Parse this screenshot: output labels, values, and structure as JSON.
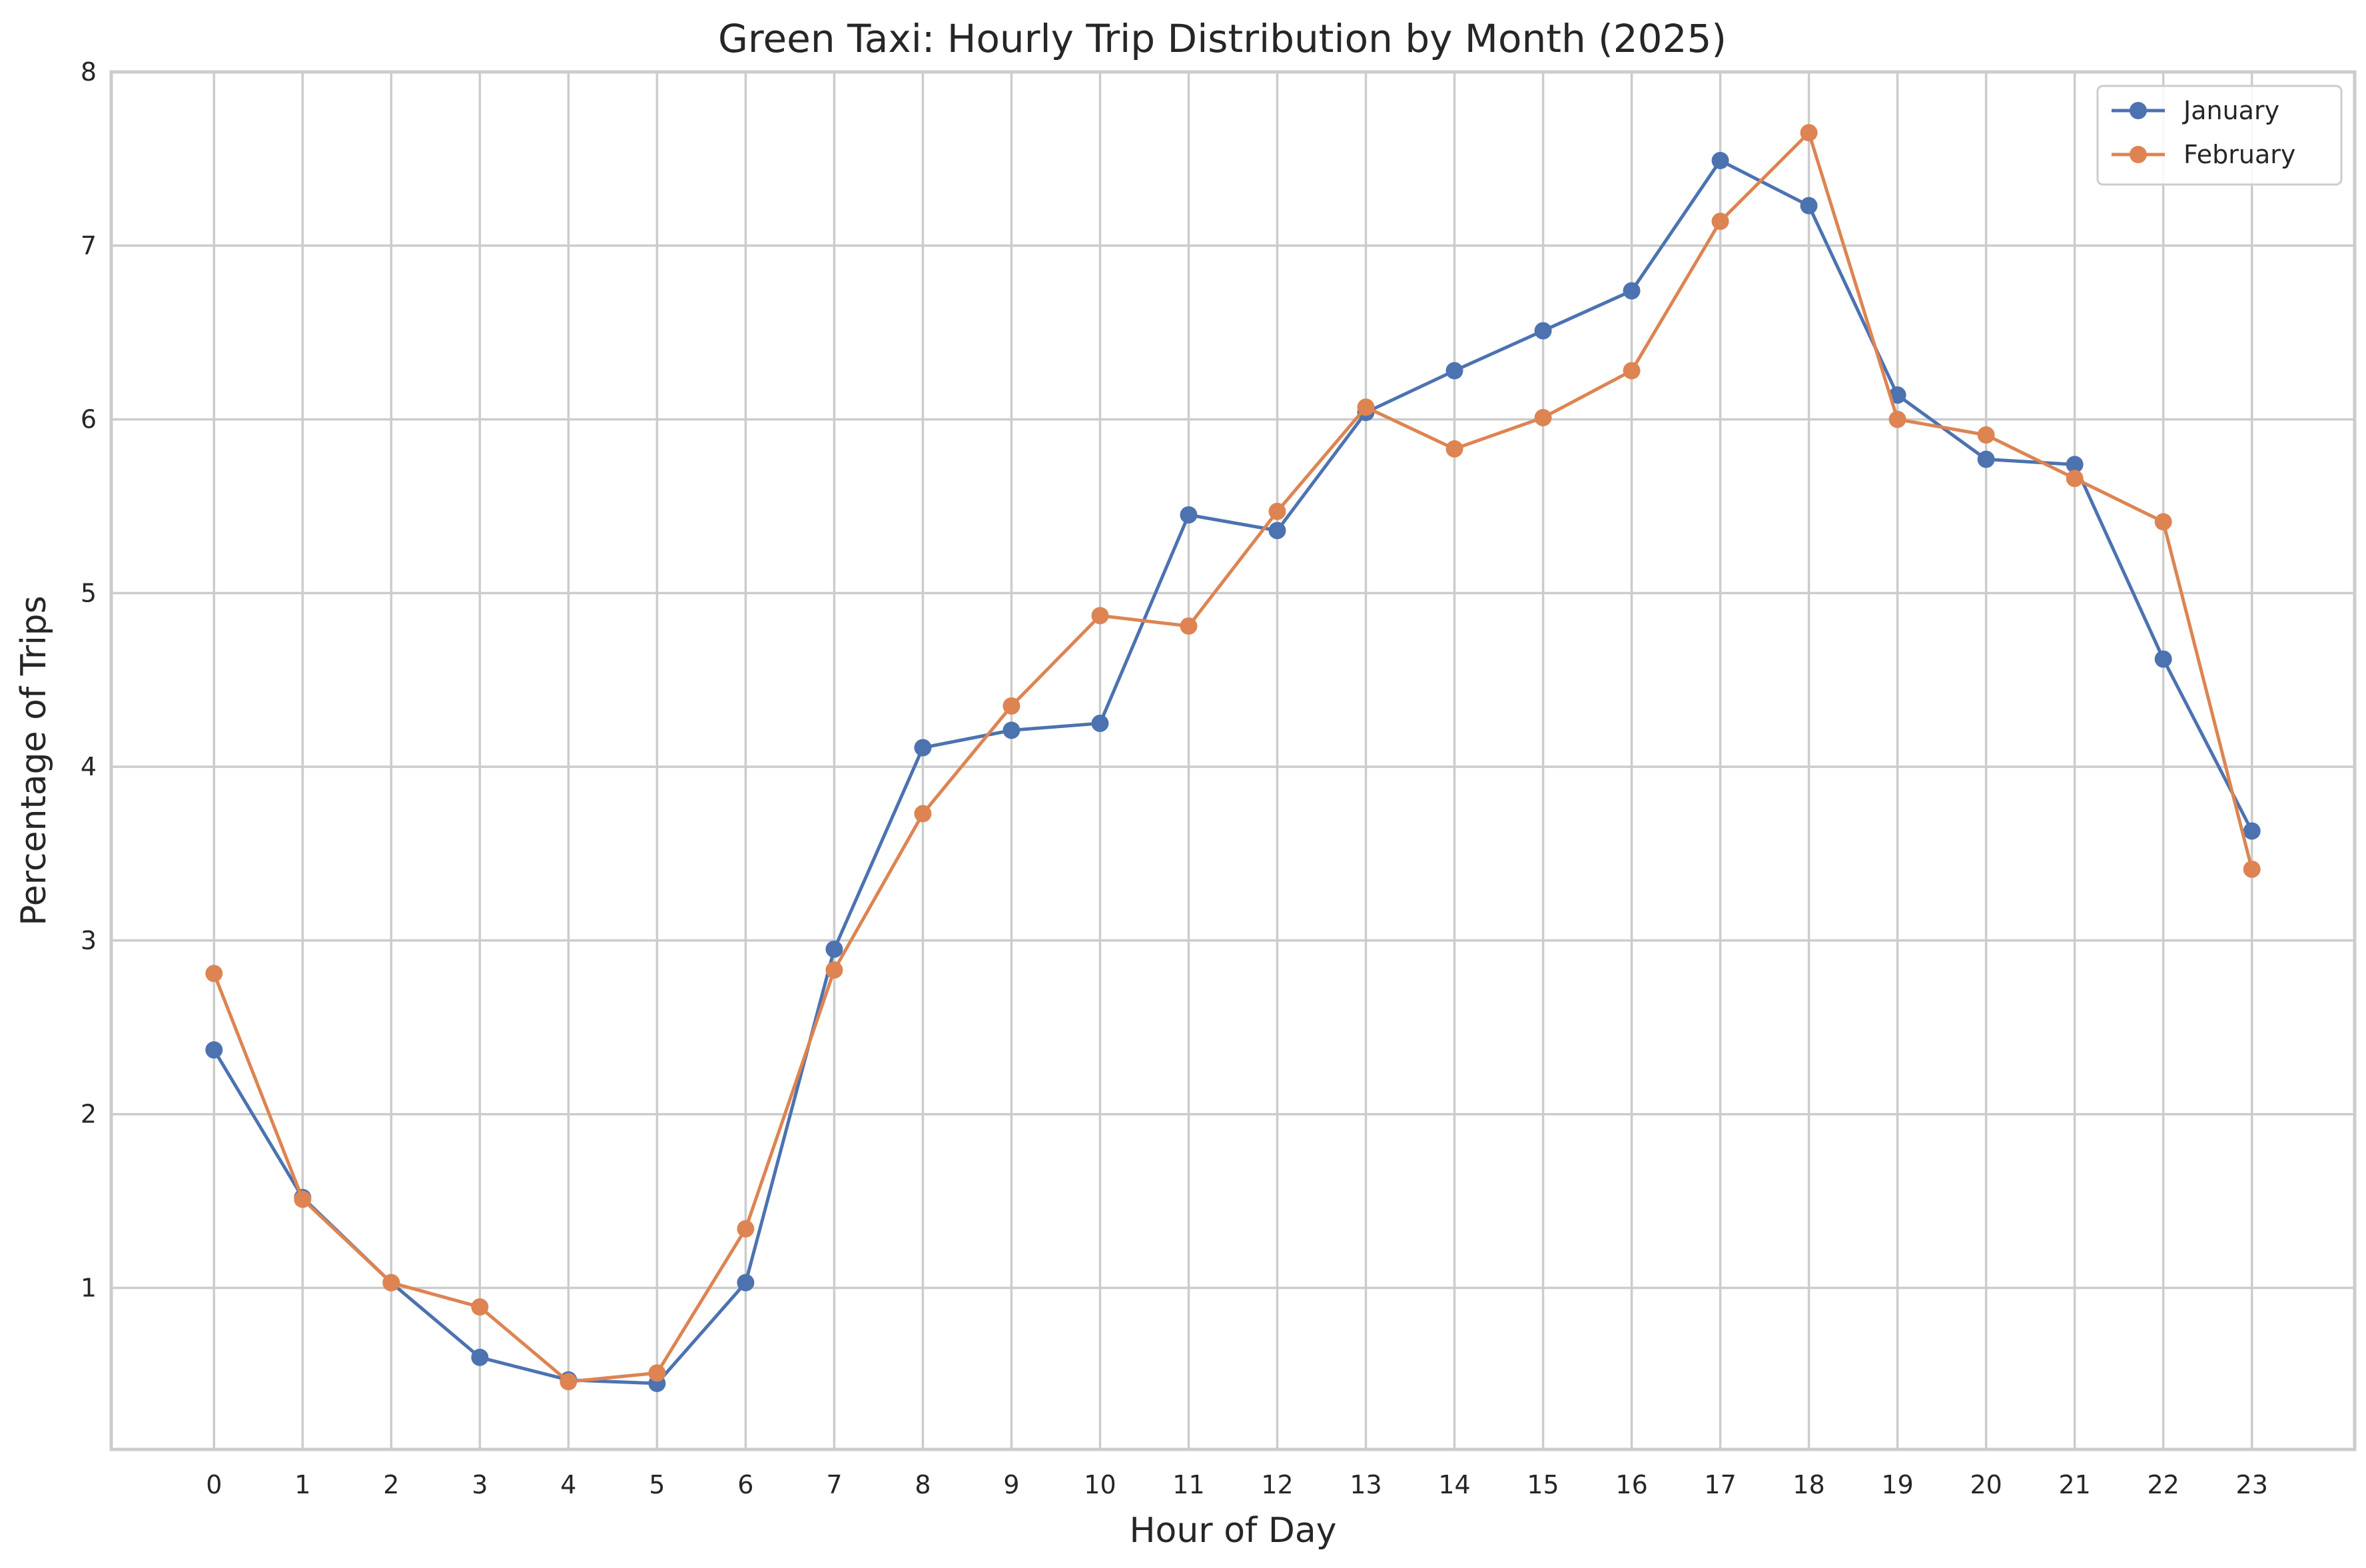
{
  "chart_data": {
    "type": "line",
    "title": "Green Taxi: Hourly Trip Distribution by Month (2025)",
    "xlabel": "Hour of Day",
    "ylabel": "Percentage of Trips",
    "x": [
      0,
      1,
      2,
      3,
      4,
      5,
      6,
      7,
      8,
      9,
      10,
      11,
      12,
      13,
      14,
      15,
      16,
      17,
      18,
      19,
      20,
      21,
      22,
      23
    ],
    "x_tick_labels": [
      "0",
      "1",
      "2",
      "3",
      "4",
      "5",
      "6",
      "7",
      "8",
      "9",
      "10",
      "11",
      "12",
      "13",
      "14",
      "15",
      "16",
      "17",
      "18",
      "19",
      "20",
      "21",
      "22",
      "23"
    ],
    "xlim": [
      -1.16,
      24.16
    ],
    "ylim": [
      0.07,
      8.0
    ],
    "y_ticks": [
      1,
      2,
      3,
      4,
      5,
      6,
      7,
      8
    ],
    "y_tick_labels": [
      "1",
      "2",
      "3",
      "4",
      "5",
      "6",
      "7",
      "8"
    ],
    "grid": true,
    "legend_position": "top-right",
    "series": [
      {
        "name": "January",
        "color": "#4c72b0",
        "values": [
          2.37,
          1.52,
          1.03,
          0.6,
          0.47,
          0.45,
          1.03,
          2.95,
          4.11,
          4.21,
          4.25,
          5.45,
          5.36,
          6.04,
          6.28,
          6.51,
          6.74,
          7.49,
          7.23,
          6.14,
          5.77,
          5.74,
          4.62,
          3.63
        ]
      },
      {
        "name": "February",
        "color": "#dd8452",
        "values": [
          2.81,
          1.51,
          1.03,
          0.89,
          0.46,
          0.51,
          1.34,
          2.83,
          3.73,
          4.35,
          4.87,
          4.81,
          5.47,
          6.07,
          5.83,
          6.01,
          6.28,
          7.14,
          7.65,
          6.0,
          5.91,
          5.66,
          5.41,
          3.41
        ]
      }
    ]
  }
}
